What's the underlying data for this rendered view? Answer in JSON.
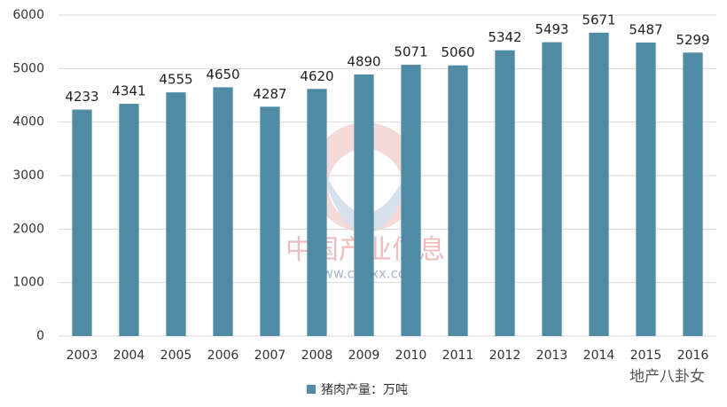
{
  "chart_data": {
    "type": "bar",
    "categories": [
      "2003",
      "2004",
      "2005",
      "2006",
      "2007",
      "2008",
      "2009",
      "2010",
      "2011",
      "2012",
      "2013",
      "2014",
      "2015",
      "2016"
    ],
    "series": [
      {
        "name": "猪肉产量：万吨",
        "color": "#4f8ba5",
        "values": [
          4233,
          4341,
          4555,
          4650,
          4287,
          4620,
          4890,
          5071,
          5060,
          5342,
          5493,
          5671,
          5487,
          5299
        ]
      }
    ],
    "ylim": [
      0,
      6000
    ],
    "yticks": [
      0,
      1000,
      2000,
      3000,
      4000,
      5000,
      6000
    ],
    "grid": true,
    "legend": "bottom",
    "watermark": "中国产业信息",
    "watermark_url": "www.chyxx.com",
    "badge": "地产八卦女"
  }
}
